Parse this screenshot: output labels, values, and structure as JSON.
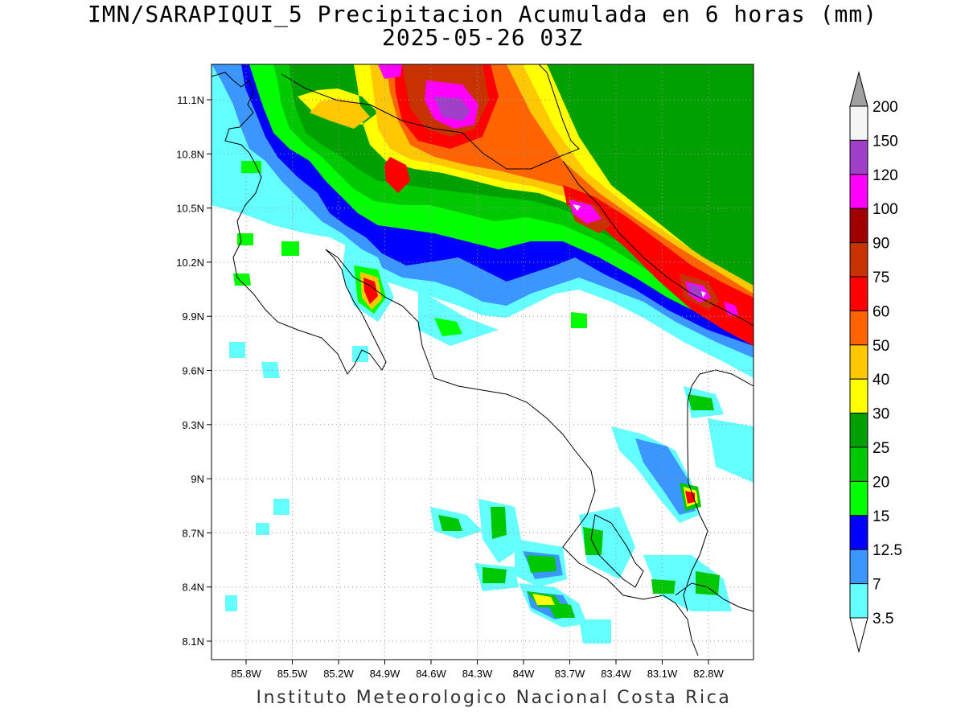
{
  "title": {
    "line1": "IMN/SARAPIQUI_5 Precipitacion Acumulada en 6 horas (mm)",
    "line2": "2025-05-26 03Z"
  },
  "credit": "Instituto Meteorologico Nacional Costa Rica",
  "axes": {
    "lat_labels": [
      "11.1N",
      "10.8N",
      "10.5N",
      "10.2N",
      "9.9N",
      "9.6N",
      "9.3N",
      "9N",
      "8.7N",
      "8.4N",
      "8.1N"
    ],
    "lon_labels": [
      "85.8W",
      "85.5W",
      "85.2W",
      "84.9W",
      "84.6W",
      "84.3W",
      "84W",
      "83.7W",
      "83.4W",
      "83.1W",
      "82.8W"
    ]
  },
  "colorbar": {
    "labels": [
      "200",
      "150",
      "120",
      "100",
      "90",
      "75",
      "60",
      "50",
      "40",
      "30",
      "25",
      "20",
      "15",
      "12.5",
      "7",
      "3.5"
    ],
    "colors": [
      "#a0a0a0",
      "#f5f5f5",
      "#a040c8",
      "#ff00ff",
      "#a00000",
      "#c83200",
      "#ff0000",
      "#ff6400",
      "#ffc800",
      "#ffff00",
      "#00a000",
      "#00c800",
      "#00ff00",
      "#0000ff",
      "#3c96ff",
      "#64ffff"
    ]
  },
  "precip_colors": {
    "c3_5": "#64ffff",
    "c7": "#3c96ff",
    "c12_5": "#0000ff",
    "c15": "#00ff00",
    "c20": "#00c800",
    "c25": "#00a000",
    "c30": "#ffff00",
    "c40": "#ffc800",
    "c50": "#ff6400",
    "c60": "#ff0000",
    "c75": "#c83200",
    "c100": "#ff00ff",
    "c120": "#a040c8",
    "c150": "#f5f5f5"
  }
}
